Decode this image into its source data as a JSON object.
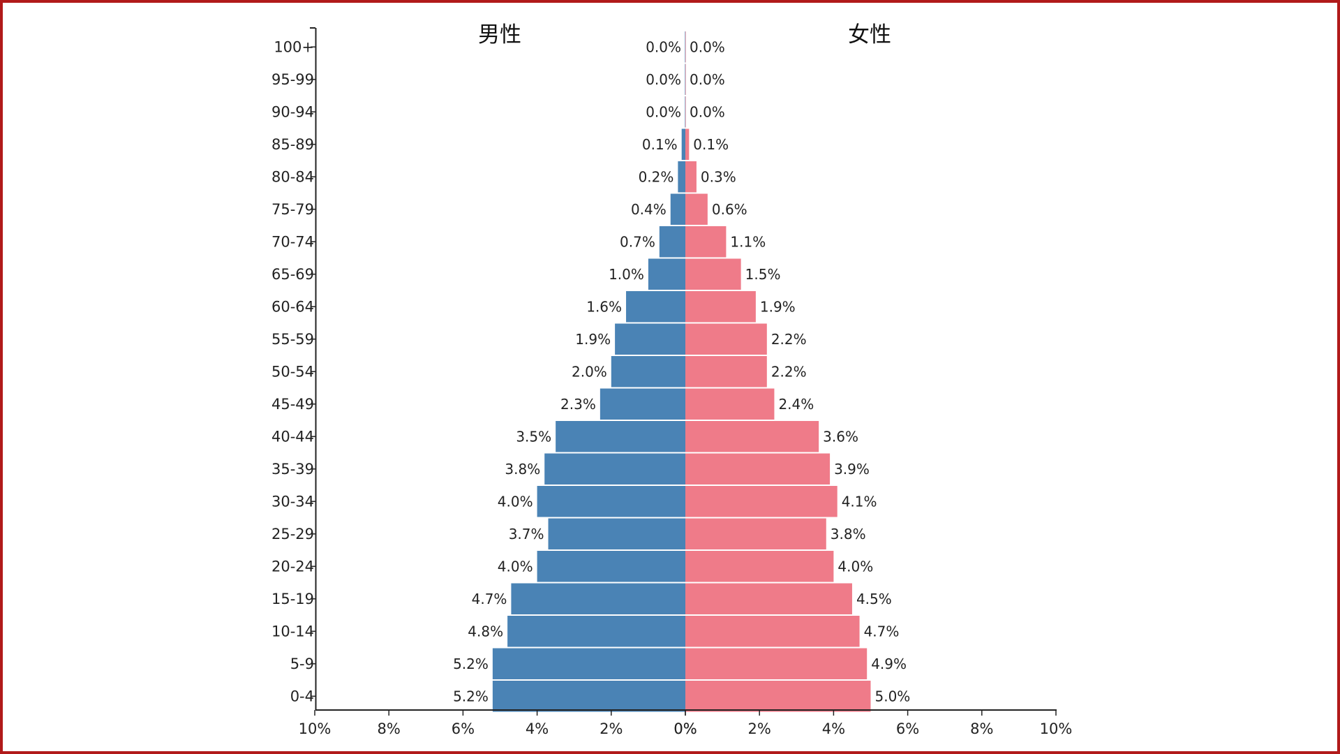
{
  "colors": {
    "frame": "#b11a1a",
    "male_bar": "#4a83b5",
    "female_bar": "#ef7b89",
    "axis": "#222222"
  },
  "chart_data": {
    "type": "bar",
    "orientation": "horizontal",
    "titles": {
      "male": "男性",
      "female": "女性"
    },
    "categories": [
      "100+",
      "95-99",
      "90-94",
      "85-89",
      "80-84",
      "75-79",
      "70-74",
      "65-69",
      "60-64",
      "55-59",
      "50-54",
      "45-49",
      "40-44",
      "35-39",
      "30-34",
      "25-29",
      "20-24",
      "15-19",
      "10-14",
      "5-9",
      "0-4"
    ],
    "series": [
      {
        "name": "男性",
        "values": [
          0.0,
          0.0,
          0.0,
          0.1,
          0.2,
          0.4,
          0.7,
          1.0,
          1.6,
          1.9,
          2.0,
          2.3,
          3.5,
          3.8,
          4.0,
          3.7,
          4.0,
          4.7,
          4.8,
          5.2,
          5.2
        ],
        "labels": [
          "0.0%",
          "0.0%",
          "0.0%",
          "0.1%",
          "0.2%",
          "0.4%",
          "0.7%",
          "1.0%",
          "1.6%",
          "1.9%",
          "2.0%",
          "2.3%",
          "3.5%",
          "3.8%",
          "4.0%",
          "3.7%",
          "4.0%",
          "4.7%",
          "4.8%",
          "5.2%",
          "5.2%"
        ]
      },
      {
        "name": "女性",
        "values": [
          0.0,
          0.0,
          0.0,
          0.1,
          0.3,
          0.6,
          1.1,
          1.5,
          1.9,
          2.2,
          2.2,
          2.4,
          3.6,
          3.9,
          4.1,
          3.8,
          4.0,
          4.5,
          4.7,
          4.9,
          5.0
        ],
        "labels": [
          "0.0%",
          "0.0%",
          "0.0%",
          "0.1%",
          "0.3%",
          "0.6%",
          "1.1%",
          "1.5%",
          "1.9%",
          "2.2%",
          "2.2%",
          "2.4%",
          "3.6%",
          "3.9%",
          "4.1%",
          "3.8%",
          "4.0%",
          "4.5%",
          "4.7%",
          "4.9%",
          "5.0%"
        ]
      }
    ],
    "x_ticks_left": [
      "10%",
      "8%",
      "6%",
      "4%",
      "2%",
      "0%"
    ],
    "x_ticks_right": [
      "0%",
      "2%",
      "4%",
      "6%",
      "8%",
      "10%"
    ],
    "xlim": [
      -10,
      10
    ],
    "grid": false
  }
}
